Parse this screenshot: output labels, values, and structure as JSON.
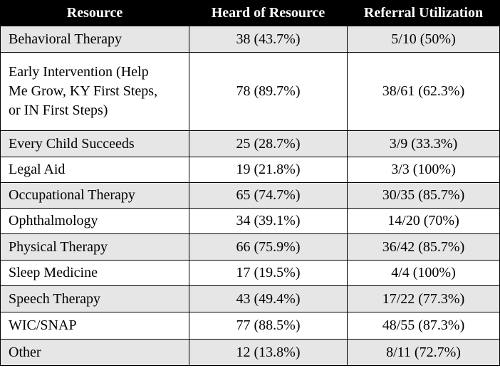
{
  "table": {
    "headers": [
      "Resource",
      "Heard of Resource",
      "Referral Utilization"
    ],
    "rows": [
      {
        "resource": "Behavioral Therapy",
        "heard": "38 (43.7%)",
        "referral": "5/10 (50%)"
      },
      {
        "resource_lines": [
          "Early Intervention (Help",
          "Me Grow, KY First Steps,",
          "or IN First Steps)"
        ],
        "heard": "78 (89.7%)",
        "referral": "38/61 (62.3%)"
      },
      {
        "resource": "Every Child Succeeds",
        "heard": "25 (28.7%)",
        "referral": "3/9 (33.3%)"
      },
      {
        "resource": "Legal Aid",
        "heard": "19 (21.8%)",
        "referral": "3/3 (100%)"
      },
      {
        "resource": "Occupational Therapy",
        "heard": "65 (74.7%)",
        "referral": "30/35 (85.7%)"
      },
      {
        "resource": "Ophthalmology",
        "heard": "34 (39.1%)",
        "referral": "14/20 (70%)"
      },
      {
        "resource": "Physical Therapy",
        "heard": "66 (75.9%)",
        "referral": "36/42 (85.7%)"
      },
      {
        "resource": "Sleep Medicine",
        "heard": "17 (19.5%)",
        "referral": "4/4 (100%)"
      },
      {
        "resource": "Speech Therapy",
        "heard": "43 (49.4%)",
        "referral": "17/22 (77.3%)"
      },
      {
        "resource": "WIC/SNAP",
        "heard": "77 (88.5%)",
        "referral": "48/55 (87.3%)"
      },
      {
        "resource": "Other",
        "heard": "12 (13.8%)",
        "referral": "8/11 (72.7%)"
      }
    ]
  },
  "colors": {
    "header_bg": "#000000",
    "header_text": "#ffffff",
    "shaded_row": "#e6e6e6",
    "plain_row": "#ffffff",
    "border": "#000000"
  }
}
